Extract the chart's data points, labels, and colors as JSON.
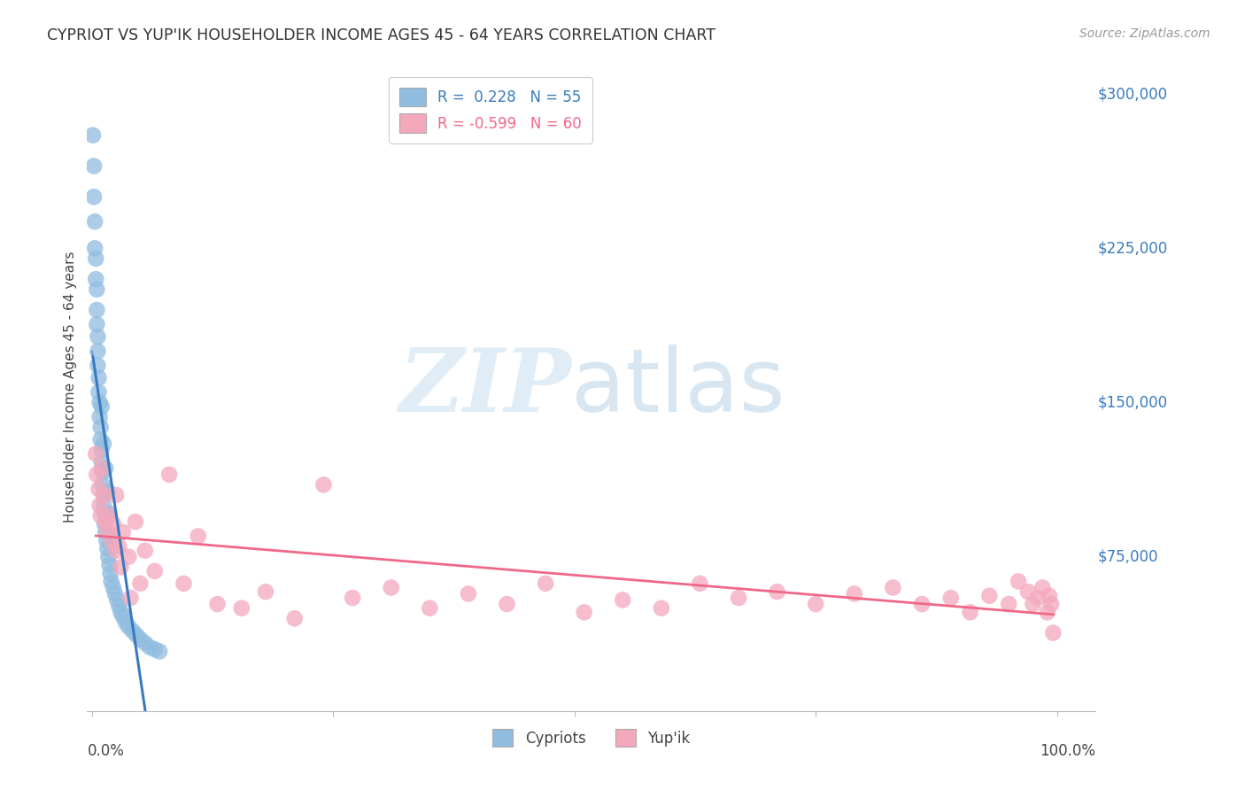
{
  "title": "CYPRIOT VS YUP'IK HOUSEHOLDER INCOME AGES 45 - 64 YEARS CORRELATION CHART",
  "source": "Source: ZipAtlas.com",
  "ylabel": "Householder Income Ages 45 - 64 years",
  "ytick_labels": [
    "$75,000",
    "$150,000",
    "$225,000",
    "$300,000"
  ],
  "ytick_values": [
    75000,
    150000,
    225000,
    300000
  ],
  "ymin": 0,
  "ymax": 315000,
  "xmin": -0.005,
  "xmax": 1.04,
  "cypriot_color": "#90bce0",
  "yupik_color": "#f4a8bc",
  "cypriot_line_color": "#3a7abf",
  "yupik_line_color": "#f06888",
  "cypriot_x": [
    0.001,
    0.002,
    0.002,
    0.003,
    0.003,
    0.004,
    0.004,
    0.005,
    0.005,
    0.005,
    0.006,
    0.006,
    0.006,
    0.007,
    0.007,
    0.008,
    0.008,
    0.009,
    0.009,
    0.01,
    0.01,
    0.011,
    0.011,
    0.012,
    0.012,
    0.013,
    0.013,
    0.014,
    0.015,
    0.016,
    0.017,
    0.018,
    0.019,
    0.02,
    0.022,
    0.024,
    0.026,
    0.028,
    0.03,
    0.032,
    0.035,
    0.038,
    0.042,
    0.046,
    0.05,
    0.055,
    0.06,
    0.065,
    0.07,
    0.01,
    0.012,
    0.014,
    0.016,
    0.018,
    0.02
  ],
  "cypriot_y": [
    280000,
    265000,
    250000,
    238000,
    225000,
    220000,
    210000,
    205000,
    195000,
    188000,
    182000,
    175000,
    168000,
    162000,
    155000,
    150000,
    143000,
    138000,
    132000,
    127000,
    121000,
    116000,
    110000,
    105000,
    100000,
    96000,
    91000,
    87000,
    83000,
    79000,
    75000,
    71000,
    67000,
    63000,
    60000,
    57000,
    54000,
    51000,
    48000,
    46000,
    43000,
    41000,
    39000,
    37000,
    35000,
    33000,
    31000,
    30000,
    29000,
    148000,
    130000,
    118000,
    107000,
    96000,
    86000
  ],
  "yupik_x": [
    0.004,
    0.005,
    0.007,
    0.008,
    0.009,
    0.01,
    0.012,
    0.014,
    0.016,
    0.018,
    0.02,
    0.022,
    0.025,
    0.028,
    0.032,
    0.038,
    0.045,
    0.055,
    0.065,
    0.08,
    0.095,
    0.11,
    0.13,
    0.155,
    0.18,
    0.21,
    0.24,
    0.27,
    0.31,
    0.35,
    0.39,
    0.43,
    0.47,
    0.51,
    0.55,
    0.59,
    0.63,
    0.67,
    0.71,
    0.75,
    0.79,
    0.83,
    0.86,
    0.89,
    0.91,
    0.93,
    0.95,
    0.96,
    0.97,
    0.975,
    0.98,
    0.985,
    0.99,
    0.992,
    0.994,
    0.996,
    0.025,
    0.03,
    0.04,
    0.05
  ],
  "yupik_y": [
    125000,
    115000,
    108000,
    100000,
    95000,
    118000,
    105000,
    92000,
    88000,
    95000,
    83000,
    91000,
    105000,
    80000,
    87000,
    75000,
    92000,
    78000,
    68000,
    115000,
    62000,
    85000,
    52000,
    50000,
    58000,
    45000,
    110000,
    55000,
    60000,
    50000,
    57000,
    52000,
    62000,
    48000,
    54000,
    50000,
    62000,
    55000,
    58000,
    52000,
    57000,
    60000,
    52000,
    55000,
    48000,
    56000,
    52000,
    63000,
    58000,
    52000,
    55000,
    60000,
    48000,
    56000,
    52000,
    38000,
    78000,
    70000,
    55000,
    62000
  ]
}
